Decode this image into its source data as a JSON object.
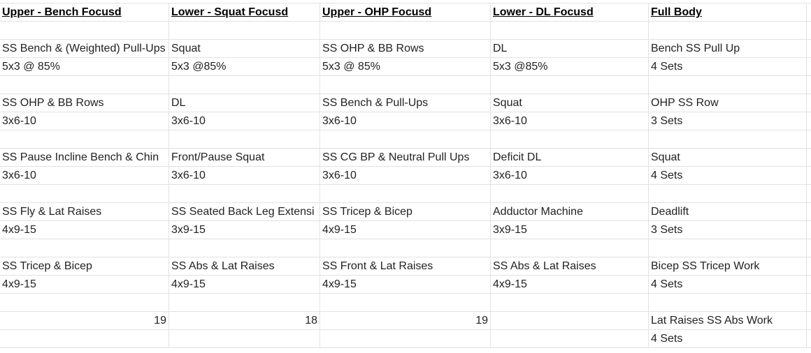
{
  "headers": [
    "Upper - Bench Focusd",
    "Lower - Squat Focusd",
    "Upper - OHP Focusd",
    "Lower - DL Focusd",
    "Full Body",
    ""
  ],
  "rows": [
    [
      "",
      "",
      "",
      "",
      "",
      ""
    ],
    [
      "SS Bench & (Weighted) Pull-Ups",
      "Squat",
      "SS OHP & BB Rows",
      "DL",
      "Bench SS Pull Up",
      ""
    ],
    [
      "5x3 @ 85%",
      "5x3 @85%",
      "5x3 @ 85%",
      "5x3 @85%",
      "4 Sets",
      ""
    ],
    [
      "",
      "",
      "",
      "",
      "",
      ""
    ],
    [
      "SS OHP & BB Rows",
      "DL",
      "SS Bench & Pull-Ups",
      "Squat",
      "OHP SS Row",
      ""
    ],
    [
      "3x6-10",
      "3x6-10",
      "3x6-10",
      "3x6-10",
      "3 Sets",
      ""
    ],
    [
      "",
      "",
      "",
      "",
      "",
      ""
    ],
    [
      "SS Pause Incline Bench & Chin",
      "Front/Pause Squat",
      "SS CG BP & Neutral Pull Ups",
      "Deficit DL",
      "Squat",
      ""
    ],
    [
      "3x6-10",
      "3x6-10",
      "3x6-10",
      "3x6-10",
      "4 Sets",
      ""
    ],
    [
      "",
      "",
      "",
      "",
      "",
      ""
    ],
    [
      "SS Fly & Lat Raises",
      "SS Seated Back Leg Extensi",
      "SS Tricep & Bicep",
      "Adductor Machine",
      "Deadlift",
      ""
    ],
    [
      "4x9-15",
      "3x9-15",
      "4x9-15",
      "3x9-15",
      "3 Sets",
      ""
    ],
    [
      "",
      "",
      "",
      "",
      "",
      ""
    ],
    [
      "SS Tricep & Bicep",
      "SS Abs & Lat Raises",
      "SS Front & Lat Raises",
      "SS Abs & Lat Raises",
      "Bicep SS Tricep Work",
      ""
    ],
    [
      "4x9-15",
      "4x9-15",
      "4x9-15",
      "4x9-15",
      "4 Sets",
      ""
    ],
    [
      "",
      "",
      "",
      "",
      "",
      ""
    ],
    [
      "19",
      "18",
      "19",
      "",
      "Lat Raises SS Abs Work",
      ""
    ],
    [
      "",
      "",
      "",
      "",
      "4 Sets",
      ""
    ]
  ]
}
